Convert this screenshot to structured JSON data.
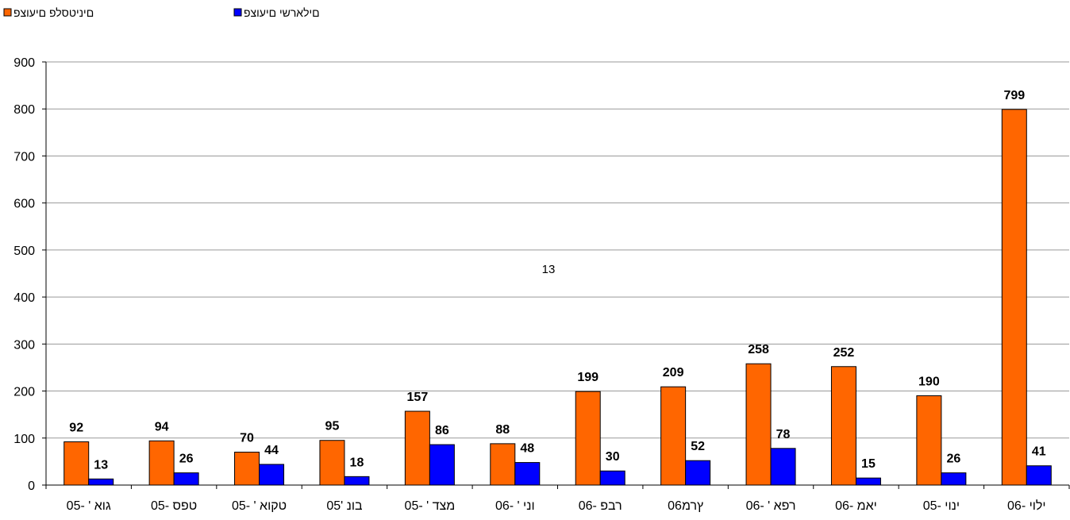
{
  "chart_data": {
    "type": "bar",
    "categories": [
      "גוא ' -05",
      "טפס -05",
      "טקוא ' -05",
      "בונ '05",
      "מצד ' -05",
      "וני ' -06",
      "רבפ -06",
      "ץרמ06",
      "רפא ' -06",
      "יאמ -06",
      "ינוי -05",
      "ילוי -06"
    ],
    "series": [
      {
        "name": "םיניטסלפ םיעוצפ",
        "color": "#FF6600",
        "values": [
          92,
          94,
          70,
          95,
          157,
          88,
          199,
          209,
          258,
          252,
          190,
          799
        ]
      },
      {
        "name": "םילארשי םיעוצפ",
        "color": "#0000FF",
        "values": [
          13,
          26,
          44,
          18,
          86,
          48,
          30,
          52,
          78,
          15,
          26,
          41
        ]
      }
    ],
    "ylim": [
      0,
      900
    ],
    "yticks": [
      0,
      100,
      200,
      300,
      400,
      500,
      600,
      700,
      800,
      900
    ],
    "grid": true,
    "legend": "top-left",
    "annotation": "13"
  }
}
